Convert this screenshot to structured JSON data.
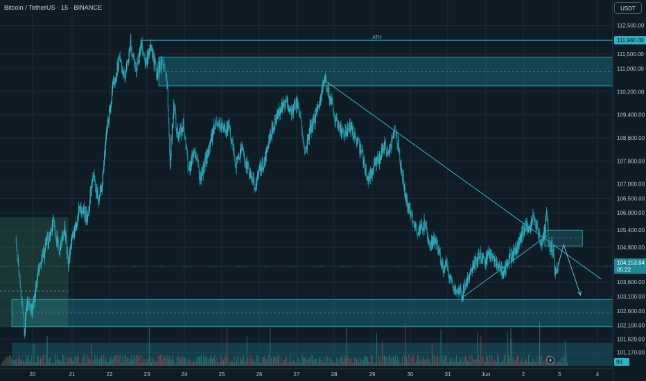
{
  "header": {
    "symbol": "Bitcoin / TetherUS · 15 · BINANCE",
    "currency_button": "USDT"
  },
  "chart_data": {
    "type": "candlestick",
    "symbol": "Bitcoin / TetherUS",
    "interval": "15",
    "exchange": "BINANCE",
    "currency": "USDT",
    "ylim": [
      100700,
      112800
    ],
    "x_ticks": [
      "20",
      "21",
      "22",
      "23",
      "24",
      "25",
      "26",
      "27",
      "28",
      "29",
      "30",
      "31",
      "Jun",
      "2",
      "3",
      "4"
    ],
    "y_ticks": [
      "112,500.00",
      "111,500.00",
      "111,000.00",
      "110,200.00",
      "109,400.00",
      "108,600.00",
      "107,800.00",
      "107,000.00",
      "106,500.00",
      "106,000.00",
      "105,400.00",
      "104,800.00",
      "103,600.00",
      "103,100.00",
      "102,600.00",
      "102,100.00",
      "101,620.00",
      "101,170.00"
    ],
    "price_path": [
      [
        19.55,
        105200
      ],
      [
        19.7,
        103100
      ],
      [
        19.78,
        101850
      ],
      [
        19.85,
        102900
      ],
      [
        20.0,
        102600
      ],
      [
        20.15,
        103900
      ],
      [
        20.35,
        104800
      ],
      [
        20.55,
        105700
      ],
      [
        20.7,
        104700
      ],
      [
        20.85,
        105400
      ],
      [
        20.95,
        104300
      ],
      [
        21.05,
        105100
      ],
      [
        21.25,
        106200
      ],
      [
        21.45,
        105800
      ],
      [
        21.6,
        107300
      ],
      [
        21.75,
        106500
      ],
      [
        21.85,
        107000
      ],
      [
        21.95,
        108600
      ],
      [
        22.05,
        109600
      ],
      [
        22.15,
        110400
      ],
      [
        22.3,
        111400
      ],
      [
        22.45,
        110600
      ],
      [
        22.6,
        111800
      ],
      [
        22.75,
        111000
      ],
      [
        22.9,
        111900
      ],
      [
        23.0,
        111100
      ],
      [
        23.15,
        111700
      ],
      [
        23.3,
        110800
      ],
      [
        23.45,
        111300
      ],
      [
        23.58,
        110300
      ],
      [
        23.65,
        107800
      ],
      [
        23.75,
        109800
      ],
      [
        23.85,
        108600
      ],
      [
        24.0,
        109100
      ],
      [
        24.15,
        107500
      ],
      [
        24.3,
        108200
      ],
      [
        24.45,
        107200
      ],
      [
        24.6,
        107800
      ],
      [
        24.75,
        108600
      ],
      [
        24.9,
        109200
      ],
      [
        25.05,
        108900
      ],
      [
        25.2,
        109000
      ],
      [
        25.4,
        107700
      ],
      [
        25.55,
        108200
      ],
      [
        25.75,
        107400
      ],
      [
        25.9,
        106900
      ],
      [
        26.0,
        107400
      ],
      [
        26.15,
        107700
      ],
      [
        26.3,
        108600
      ],
      [
        26.45,
        109300
      ],
      [
        26.6,
        109600
      ],
      [
        26.75,
        109800
      ],
      [
        26.9,
        109500
      ],
      [
        27.0,
        109900
      ],
      [
        27.15,
        109000
      ],
      [
        27.25,
        108000
      ],
      [
        27.35,
        108800
      ],
      [
        27.45,
        109100
      ],
      [
        27.6,
        109800
      ],
      [
        27.75,
        110600
      ],
      [
        27.85,
        110200
      ],
      [
        27.95,
        109800
      ],
      [
        28.05,
        109200
      ],
      [
        28.15,
        108900
      ],
      [
        28.3,
        108700
      ],
      [
        28.45,
        109000
      ],
      [
        28.6,
        108500
      ],
      [
        28.75,
        108000
      ],
      [
        28.9,
        107200
      ],
      [
        29.05,
        107500
      ],
      [
        29.2,
        107900
      ],
      [
        29.35,
        108400
      ],
      [
        29.45,
        108000
      ],
      [
        29.55,
        108600
      ],
      [
        29.65,
        108800
      ],
      [
        29.75,
        107900
      ],
      [
        29.85,
        107000
      ],
      [
        29.95,
        106300
      ],
      [
        30.1,
        105800
      ],
      [
        30.25,
        105300
      ],
      [
        30.4,
        105600
      ],
      [
        30.55,
        104800
      ],
      [
        30.7,
        105100
      ],
      [
        30.8,
        104600
      ],
      [
        30.9,
        104000
      ],
      [
        31.0,
        104200
      ],
      [
        31.1,
        103700
      ],
      [
        31.25,
        103300
      ],
      [
        31.4,
        103200
      ],
      [
        31.55,
        103600
      ],
      [
        31.7,
        104100
      ],
      [
        31.85,
        104500
      ],
      [
        32.0,
        104300
      ],
      [
        32.15,
        104600
      ],
      [
        32.35,
        104200
      ],
      [
        32.5,
        103900
      ],
      [
        32.65,
        104400
      ],
      [
        32.8,
        104600
      ],
      [
        32.95,
        105100
      ],
      [
        33.1,
        105600
      ],
      [
        33.2,
        105300
      ],
      [
        33.3,
        105800
      ],
      [
        33.4,
        105500
      ],
      [
        33.5,
        104900
      ],
      [
        33.58,
        105200
      ],
      [
        33.65,
        105950
      ],
      [
        33.72,
        104700
      ],
      [
        33.8,
        104900
      ],
      [
        33.88,
        103800
      ],
      [
        33.95,
        104150
      ]
    ],
    "zones": [
      {
        "name": "supply-zone-upper",
        "y_from": 110400,
        "y_to": 111400
      },
      {
        "name": "demand-zone-lower",
        "y_from": 102050,
        "y_to": 103000
      },
      {
        "name": "retest-box",
        "y_from": 104850,
        "y_to": 105400
      },
      {
        "name": "volume-band",
        "y_from": 100700,
        "y_to": 101500
      },
      {
        "name": "left-range-box",
        "y_from": 102050,
        "y_to": 105850
      }
    ],
    "lines": {
      "ath": {
        "label": "ATH",
        "value": 111980
      },
      "ath_price_tag": "111,980.00",
      "descending_trendline": [
        [
          27.75,
          110600
        ],
        [
          35.1,
          103700
        ]
      ],
      "ascending_trendline": [
        [
          31.45,
          103100
        ],
        [
          33.65,
          105200
        ]
      ],
      "projection": [
        [
          33.95,
          104150
        ],
        [
          34.1,
          104900
        ],
        [
          34.55,
          103150
        ]
      ]
    },
    "last_price": {
      "value": 104153.84,
      "label": "104,153.84",
      "countdown": "05:22"
    },
    "volume_marker": "96"
  }
}
